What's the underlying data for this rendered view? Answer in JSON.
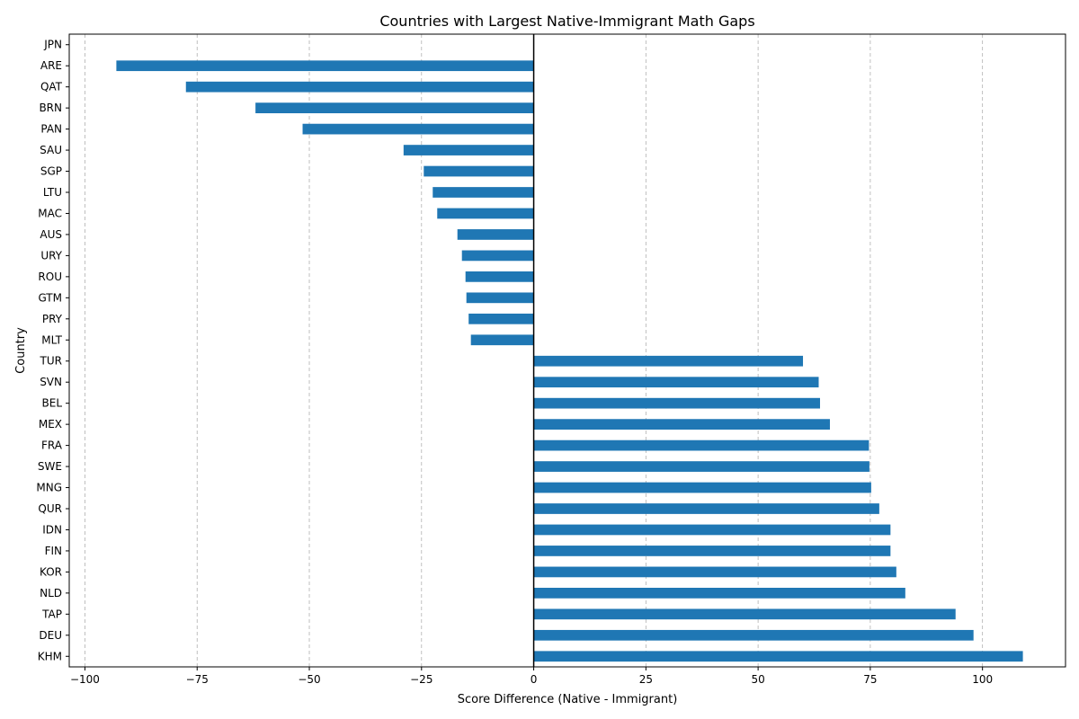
{
  "chart_data": {
    "type": "bar",
    "orientation": "horizontal",
    "title": "Countries with Largest Native-Immigrant Math Gaps",
    "xlabel": "Score Difference (Native - Immigrant)",
    "ylabel": "Country",
    "xlim": [
      -103.5,
      118.5
    ],
    "xticks": [
      -100,
      -75,
      -50,
      -25,
      0,
      25,
      50,
      75,
      100
    ],
    "xtick_labels": [
      "−100",
      "−75",
      "−50",
      "−25",
      "0",
      "25",
      "50",
      "75",
      "100"
    ],
    "grid": "x-dashed",
    "zero_line": true,
    "bar_color": "#1f77b4",
    "categories": [
      "JPN",
      "ARE",
      "QAT",
      "BRN",
      "PAN",
      "SAU",
      "SGP",
      "LTU",
      "MAC",
      "AUS",
      "URY",
      "ROU",
      "GTM",
      "PRY",
      "MLT",
      "TUR",
      "SVN",
      "BEL",
      "MEX",
      "FRA",
      "SWE",
      "MNG",
      "QUR",
      "IDN",
      "FIN",
      "KOR",
      "NLD",
      "TAP",
      "DEU",
      "KHM"
    ],
    "values": [
      0,
      -93,
      -77.5,
      -62,
      -51.5,
      -29,
      -24.5,
      -22.5,
      -21.5,
      -17,
      -16,
      -15.2,
      -15,
      -14.5,
      -14,
      60,
      63.5,
      63.8,
      66,
      74.7,
      74.8,
      75.2,
      77,
      79.5,
      79.5,
      80.8,
      82.8,
      94,
      98,
      109
    ]
  }
}
